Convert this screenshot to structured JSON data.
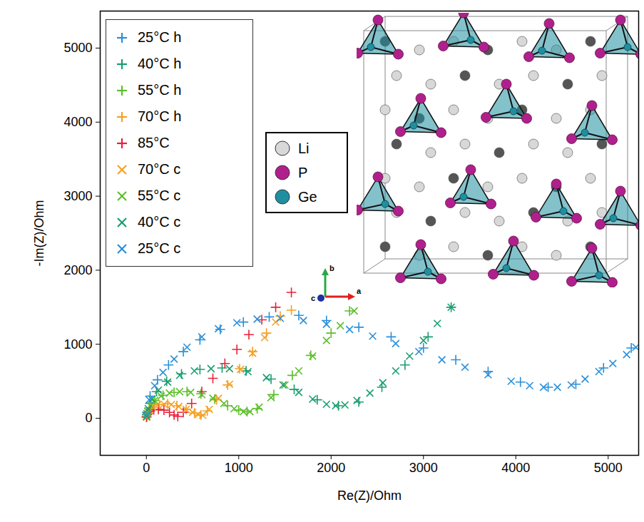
{
  "chart_data": {
    "type": "scatter",
    "x_label": "Re(Z)/Ohm",
    "y_label": "-Im(Z)/Ohm",
    "xlim": [
      -500,
      5330
    ],
    "ylim": [
      -500,
      5500
    ],
    "xticks": [
      0,
      1000,
      2000,
      3000,
      4000,
      5000
    ],
    "yticks": [
      0,
      1000,
      2000,
      3000,
      4000,
      5000
    ],
    "grid": false,
    "legend": "top-left",
    "series": [
      {
        "name": "25°C h",
        "color": "#2a8fd8",
        "marker": "plus",
        "x": [
          5,
          40,
          120,
          240,
          400,
          580,
          800,
          1050,
          1330,
          1650,
          1950,
          2300,
          2650,
          3000,
          3350,
          3700,
          4050,
          4350,
          4650,
          4950,
          5250
        ],
        "values": [
          80,
          300,
          520,
          720,
          900,
          1060,
          1200,
          1300,
          1370,
          1390,
          1320,
          1230,
          1100,
          950,
          790,
          630,
          490,
          420,
          460,
          680,
          950
        ]
      },
      {
        "name": "40°C h",
        "color": "#1a9e6e",
        "marker": "plus",
        "x": [
          5,
          40,
          110,
          220,
          380,
          580,
          820,
          1080,
          1350,
          1600,
          1850,
          2080,
          2300,
          2550,
          2800,
          3050,
          3300
        ],
        "values": [
          50,
          200,
          360,
          500,
          600,
          660,
          680,
          640,
          530,
          390,
          250,
          170,
          220,
          420,
          720,
          1100,
          1500
        ]
      },
      {
        "name": "55°C h",
        "color": "#5cbf2a",
        "marker": "plus",
        "x": [
          3,
          30,
          90,
          180,
          300,
          440,
          590,
          740,
          880,
          1000,
          1090,
          1200,
          1380,
          1580,
          1780,
          2000,
          2200
        ],
        "values": [
          30,
          140,
          240,
          310,
          350,
          360,
          330,
          260,
          170,
          110,
          90,
          130,
          320,
          580,
          850,
          1150,
          1450
        ]
      },
      {
        "name": "70°C h",
        "color": "#f5a020",
        "marker": "plus",
        "x": [
          3,
          25,
          70,
          140,
          230,
          330,
          430,
          520,
          590,
          660,
          760,
          880,
          1010,
          1150,
          1300,
          1450,
          1570
        ],
        "values": [
          25,
          90,
          150,
          185,
          195,
          170,
          120,
          70,
          45,
          100,
          250,
          450,
          670,
          900,
          1150,
          1380,
          1460
        ]
      },
      {
        "name": "85°C",
        "color": "#e8213a",
        "marker": "plus",
        "x": [
          2,
          15,
          40,
          80,
          130,
          190,
          250,
          300,
          340,
          400,
          490,
          600,
          720,
          850,
          980,
          1110,
          1250,
          1400,
          1570
        ],
        "values": [
          15,
          60,
          95,
          115,
          120,
          110,
          80,
          45,
          25,
          80,
          200,
          360,
          540,
          740,
          930,
          1130,
          1330,
          1500,
          1700
        ]
      },
      {
        "name": "70°C c",
        "color": "#f5a020",
        "marker": "times",
        "x": [
          2,
          12,
          35,
          70,
          120,
          190,
          270,
          350,
          430,
          500,
          560,
          610,
          680,
          780,
          900,
          1020,
          1150,
          1280,
          1400
        ],
        "values": [
          15,
          60,
          110,
          150,
          180,
          190,
          185,
          160,
          120,
          80,
          50,
          40,
          120,
          270,
          460,
          660,
          880,
          1090,
          1300
        ]
      },
      {
        "name": "55°C c",
        "color": "#5cbf2a",
        "marker": "times",
        "x": [
          2,
          15,
          45,
          90,
          160,
          250,
          360,
          480,
          600,
          720,
          840,
          950,
          1050,
          1120,
          1220,
          1350,
          1500,
          1650,
          1800,
          1950,
          2100,
          2250
        ],
        "values": [
          20,
          90,
          170,
          240,
          300,
          340,
          360,
          350,
          320,
          270,
          200,
          130,
          90,
          90,
          150,
          280,
          450,
          640,
          840,
          1050,
          1250,
          1450
        ]
      },
      {
        "name": "40°C c",
        "color": "#1a9e6e",
        "marker": "times",
        "x": [
          3,
          20,
          60,
          130,
          230,
          360,
          520,
          700,
          900,
          1100,
          1300,
          1480,
          1650,
          1800,
          1950,
          2050,
          2150,
          2280,
          2420,
          2560,
          2700,
          2850,
          3000,
          3150,
          3300
        ],
        "values": [
          30,
          130,
          260,
          380,
          490,
          580,
          640,
          670,
          670,
          630,
          550,
          450,
          350,
          260,
          190,
          170,
          180,
          240,
          340,
          480,
          640,
          840,
          1050,
          1280,
          1500
        ]
      },
      {
        "name": "25°C c",
        "color": "#2a8fd8",
        "marker": "times",
        "x": [
          5,
          30,
          90,
          180,
          300,
          440,
          600,
          780,
          980,
          1200,
          1450,
          1700,
          1950,
          2200,
          2450,
          2700,
          2950,
          3200,
          3450,
          3700,
          3950,
          4150,
          4300,
          4450,
          4600,
          4750,
          4900,
          5050,
          5200,
          5300
        ],
        "values": [
          60,
          250,
          440,
          620,
          800,
          960,
          1100,
          1210,
          1290,
          1340,
          1350,
          1320,
          1270,
          1200,
          1110,
          1010,
          900,
          790,
          690,
          590,
          500,
          440,
          420,
          420,
          450,
          530,
          630,
          740,
          860,
          960
        ]
      }
    ],
    "annotations": {
      "structure_legend": [
        {
          "label": "Li",
          "color": "#d8d8d8"
        },
        {
          "label": "P",
          "color": "#b0208c"
        },
        {
          "label": "Ge",
          "color": "#1f8fa0"
        }
      ],
      "axis_labels": [
        "b",
        "c",
        "a"
      ]
    }
  }
}
